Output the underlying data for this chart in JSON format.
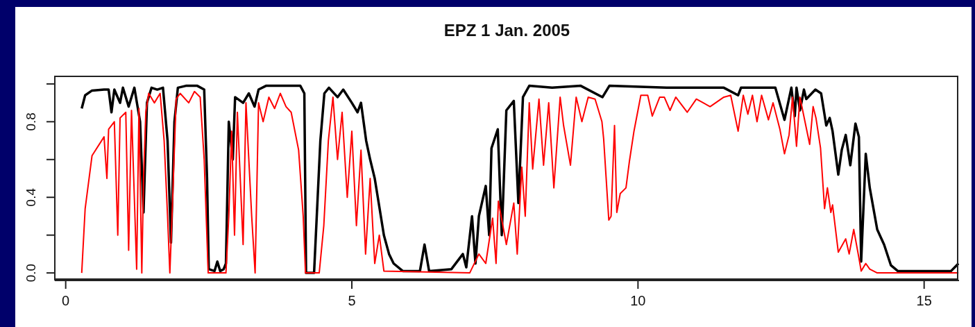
{
  "chart_data": {
    "type": "line",
    "title": "EPZ 1 Jan. 2005",
    "xlim": [
      -0.19,
      15.61
    ],
    "ylim": [
      -0.04,
      1.04
    ],
    "xticks": [
      0,
      5,
      10,
      15
    ],
    "yticks": [
      {
        "value": 0,
        "label": "0.0"
      },
      {
        "value": 0.2,
        "label": null
      },
      {
        "value": 0.4,
        "label": "0.4"
      },
      {
        "value": 0.6,
        "label": null
      },
      {
        "value": 0.8,
        "label": "0.8"
      },
      {
        "value": 1,
        "label": null
      }
    ],
    "marker": "none",
    "line_style": "solid",
    "series": [
      {
        "color": "#000000",
        "x": [
          0.28,
          0.34,
          0.46,
          0.67,
          0.75,
          0.8,
          0.85,
          0.95,
          1.0,
          1.1,
          1.2,
          1.3,
          1.36,
          1.42,
          1.5,
          1.6,
          1.7,
          1.78,
          1.84,
          1.9,
          1.96,
          2.1,
          2.3,
          2.42,
          2.47,
          2.5,
          2.6,
          2.65,
          2.7,
          2.76,
          2.8,
          2.85,
          2.92,
          2.96,
          3.1,
          3.2,
          3.3,
          3.37,
          3.5,
          3.8,
          4.1,
          4.17,
          4.2,
          4.34,
          4.45,
          4.52,
          4.6,
          4.75,
          4.85,
          5.0,
          5.1,
          5.16,
          5.25,
          5.32,
          5.4,
          5.48,
          5.56,
          5.65,
          5.73,
          5.89,
          6.19,
          6.27,
          6.35,
          6.74,
          6.94,
          7.0,
          7.1,
          7.16,
          7.22,
          7.34,
          7.4,
          7.44,
          7.55,
          7.62,
          7.7,
          7.83,
          7.91,
          7.99,
          8.1,
          8.5,
          9.0,
          9.38,
          9.5,
          10.5,
          11.5,
          11.75,
          11.8,
          12.4,
          12.56,
          12.68,
          12.74,
          12.77,
          12.83,
          12.9,
          12.94,
          13.1,
          13.2,
          13.29,
          13.35,
          13.4,
          13.5,
          13.56,
          13.63,
          13.71,
          13.8,
          13.86,
          13.9,
          13.98,
          14.05,
          14.18,
          14.3,
          14.42,
          14.54,
          15.0,
          15.47,
          15.6
        ],
        "values": [
          0.87,
          0.94,
          0.965,
          0.97,
          0.97,
          0.85,
          0.97,
          0.9,
          0.98,
          0.88,
          0.98,
          0.8,
          0.32,
          0.9,
          0.98,
          0.97,
          0.98,
          0.7,
          0.16,
          0.8,
          0.98,
          0.99,
          0.99,
          0.97,
          0.5,
          0.02,
          0.01,
          0.06,
          0.01,
          0.02,
          0.05,
          0.8,
          0.6,
          0.93,
          0.9,
          0.95,
          0.88,
          0.97,
          0.99,
          0.99,
          0.99,
          0.95,
          0,
          0,
          0.7,
          0.95,
          0.98,
          0.93,
          0.97,
          0.9,
          0.85,
          0.9,
          0.7,
          0.6,
          0.5,
          0.35,
          0.2,
          0.1,
          0.05,
          0.01,
          0.01,
          0.15,
          0.01,
          0.02,
          0.1,
          0.03,
          0.3,
          0.05,
          0.3,
          0.46,
          0.2,
          0.66,
          0.76,
          0.2,
          0.86,
          0.91,
          0.37,
          0.93,
          0.99,
          0.98,
          0.99,
          0.93,
          0.99,
          0.98,
          0.98,
          0.94,
          0.98,
          0.98,
          0.81,
          0.98,
          0.83,
          0.98,
          0.86,
          0.97,
          0.92,
          0.97,
          0.95,
          0.78,
          0.82,
          0.75,
          0.52,
          0.65,
          0.73,
          0.57,
          0.79,
          0.72,
          0.06,
          0.63,
          0.45,
          0.23,
          0.15,
          0.04,
          0.01,
          0.01,
          0.01,
          0.05
        ]
      },
      {
        "color": "#ff0000",
        "x": [
          0.28,
          0.34,
          0.46,
          0.67,
          0.72,
          0.75,
          0.85,
          0.91,
          0.95,
          1.05,
          1.1,
          1.15,
          1.24,
          1.28,
          1.33,
          1.36,
          1.4,
          1.45,
          1.55,
          1.65,
          1.72,
          1.78,
          1.82,
          1.87,
          1.93,
          2.0,
          2.15,
          2.25,
          2.35,
          2.42,
          2.49,
          2.8,
          2.85,
          2.9,
          2.95,
          3.0,
          3.1,
          3.15,
          3.25,
          3.31,
          3.37,
          3.45,
          3.55,
          3.65,
          3.75,
          3.85,
          3.94,
          4.07,
          4.15,
          4.19,
          4.43,
          4.51,
          4.59,
          4.67,
          4.75,
          4.83,
          4.92,
          5.0,
          5.08,
          5.16,
          5.24,
          5.32,
          5.4,
          5.48,
          5.56,
          7.06,
          7.22,
          7.34,
          7.46,
          7.52,
          7.56,
          7.7,
          7.83,
          7.89,
          7.97,
          8.03,
          8.1,
          8.16,
          8.27,
          8.35,
          8.44,
          8.53,
          8.64,
          8.7,
          8.82,
          8.92,
          9.02,
          9.13,
          9.25,
          9.28,
          9.37,
          9.4,
          9.49,
          9.53,
          9.59,
          9.63,
          9.69,
          9.79,
          9.85,
          9.93,
          10.05,
          10.17,
          10.25,
          10.38,
          10.46,
          10.56,
          10.66,
          10.86,
          11.02,
          11.26,
          11.5,
          11.62,
          11.75,
          11.84,
          11.92,
          12.0,
          12.08,
          12.16,
          12.28,
          12.36,
          12.48,
          12.56,
          12.64,
          12.7,
          12.77,
          12.83,
          13.0,
          13.06,
          13.11,
          13.11,
          13.19,
          13.26,
          13.31,
          13.37,
          13.4,
          13.5,
          13.63,
          13.69,
          13.77,
          13.86,
          13.9,
          13.98,
          14.05,
          14.18,
          15.6
        ],
        "values": [
          0,
          0.34,
          0.62,
          0.72,
          0.5,
          0.76,
          0.8,
          0.2,
          0.82,
          0.85,
          0.12,
          0.86,
          0.02,
          0.87,
          0,
          0.5,
          0.85,
          0.95,
          0.9,
          0.95,
          0.7,
          0.3,
          0,
          0.4,
          0.92,
          0.95,
          0.9,
          0.96,
          0.93,
          0.6,
          0,
          0,
          0.3,
          0.75,
          0.2,
          0.85,
          0.15,
          0.9,
          0.3,
          0,
          0.9,
          0.8,
          0.93,
          0.87,
          0.95,
          0.88,
          0.85,
          0.65,
          0.3,
          0,
          0,
          0.25,
          0.7,
          0.93,
          0.6,
          0.85,
          0.4,
          0.75,
          0.25,
          0.65,
          0.1,
          0.5,
          0.05,
          0.2,
          0.01,
          0,
          0.1,
          0.05,
          0.29,
          0.05,
          0.38,
          0.15,
          0.37,
          0.1,
          0.56,
          0.3,
          0.9,
          0.55,
          0.92,
          0.57,
          0.9,
          0.45,
          0.93,
          0.78,
          0.57,
          0.93,
          0.8,
          0.93,
          0.92,
          0.89,
          0.8,
          0.71,
          0.28,
          0.3,
          0.78,
          0.32,
          0.42,
          0.45,
          0.59,
          0.75,
          0.94,
          0.94,
          0.83,
          0.93,
          0.93,
          0.86,
          0.93,
          0.85,
          0.92,
          0.88,
          0.93,
          0.94,
          0.75,
          0.94,
          0.84,
          0.94,
          0.8,
          0.94,
          0.81,
          0.9,
          0.76,
          0.63,
          0.73,
          0.93,
          0.67,
          0.93,
          0.68,
          0.88,
          0.82,
          0.82,
          0.66,
          0.34,
          0.45,
          0.32,
          0.36,
          0.11,
          0.18,
          0.1,
          0.23,
          0.08,
          0.01,
          0.05,
          0.02,
          0,
          0
        ]
      }
    ]
  }
}
